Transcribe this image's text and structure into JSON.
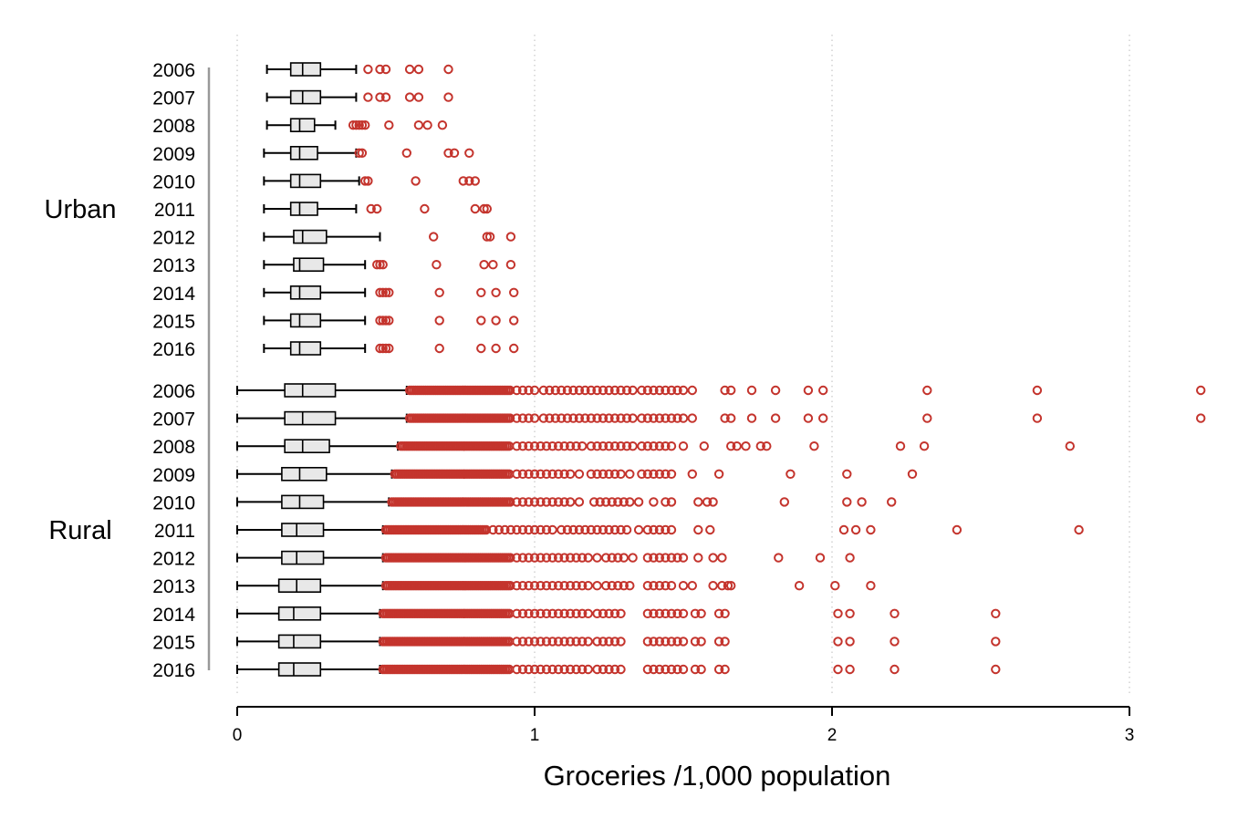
{
  "chart_data": {
    "type": "boxplot",
    "title": "",
    "xlabel": "Groceries /1,000 population",
    "xlim": [
      0,
      3
    ],
    "xticks": [
      "0",
      "1",
      "2",
      "3"
    ],
    "grid": "vertical dotted",
    "colors": {
      "box_fill": "#e8e8e8",
      "outlier": "#c4342d",
      "line": "#000000",
      "grid": "#bbbbbb"
    },
    "groups": [
      {
        "name": "Urban",
        "rows": [
          {
            "year": "2006",
            "whisker_low": 0.1,
            "q1": 0.18,
            "median": 0.22,
            "q3": 0.28,
            "whisker_high": 0.4,
            "outliers": [
              0.44,
              0.48,
              0.5,
              0.58,
              0.61,
              0.71
            ]
          },
          {
            "year": "2007",
            "whisker_low": 0.1,
            "q1": 0.18,
            "median": 0.22,
            "q3": 0.28,
            "whisker_high": 0.4,
            "outliers": [
              0.44,
              0.48,
              0.5,
              0.58,
              0.61,
              0.71
            ]
          },
          {
            "year": "2008",
            "whisker_low": 0.1,
            "q1": 0.18,
            "median": 0.21,
            "q3": 0.26,
            "whisker_high": 0.33,
            "outliers": [
              0.39,
              0.4,
              0.41,
              0.42,
              0.43,
              0.51,
              0.61,
              0.64,
              0.69
            ]
          },
          {
            "year": "2009",
            "whisker_low": 0.09,
            "q1": 0.18,
            "median": 0.21,
            "q3": 0.27,
            "whisker_high": 0.4,
            "outliers": [
              0.41,
              0.42,
              0.57,
              0.71,
              0.73,
              0.78
            ]
          },
          {
            "year": "2010",
            "whisker_low": 0.09,
            "q1": 0.18,
            "median": 0.21,
            "q3": 0.28,
            "whisker_high": 0.41,
            "outliers": [
              0.43,
              0.44,
              0.6,
              0.76,
              0.78,
              0.8
            ]
          },
          {
            "year": "2011",
            "whisker_low": 0.09,
            "q1": 0.18,
            "median": 0.21,
            "q3": 0.27,
            "whisker_high": 0.4,
            "outliers": [
              0.45,
              0.47,
              0.63,
              0.8,
              0.83,
              0.84
            ]
          },
          {
            "year": "2012",
            "whisker_low": 0.09,
            "q1": 0.19,
            "median": 0.22,
            "q3": 0.3,
            "whisker_high": 0.48,
            "outliers": [
              0.66,
              0.84,
              0.85,
              0.92
            ]
          },
          {
            "year": "2013",
            "whisker_low": 0.09,
            "q1": 0.19,
            "median": 0.21,
            "q3": 0.29,
            "whisker_high": 0.43,
            "outliers": [
              0.47,
              0.48,
              0.49,
              0.67,
              0.83,
              0.86,
              0.92
            ]
          },
          {
            "year": "2014",
            "whisker_low": 0.09,
            "q1": 0.18,
            "median": 0.21,
            "q3": 0.28,
            "whisker_high": 0.43,
            "outliers": [
              0.48,
              0.49,
              0.5,
              0.51,
              0.68,
              0.82,
              0.87,
              0.93
            ]
          },
          {
            "year": "2015",
            "whisker_low": 0.09,
            "q1": 0.18,
            "median": 0.21,
            "q3": 0.28,
            "whisker_high": 0.43,
            "outliers": [
              0.48,
              0.49,
              0.5,
              0.51,
              0.68,
              0.82,
              0.87,
              0.93
            ]
          },
          {
            "year": "2016",
            "whisker_low": 0.09,
            "q1": 0.18,
            "median": 0.21,
            "q3": 0.28,
            "whisker_high": 0.43,
            "outliers": [
              0.48,
              0.49,
              0.5,
              0.51,
              0.68,
              0.82,
              0.87,
              0.93
            ]
          }
        ]
      },
      {
        "name": "Rural",
        "rows": [
          {
            "year": "2006",
            "whisker_low": 0,
            "q1": 0.16,
            "median": 0.22,
            "q3": 0.33,
            "whisker_high": 0.57,
            "dense_outlier_range": [
              0.58,
              0.92
            ],
            "outliers": [
              0.94,
              0.96,
              0.98,
              1.0,
              1.03,
              1.05,
              1.07,
              1.09,
              1.11,
              1.13,
              1.15,
              1.17,
              1.19,
              1.21,
              1.23,
              1.25,
              1.27,
              1.29,
              1.31,
              1.33,
              1.36,
              1.38,
              1.4,
              1.42,
              1.44,
              1.46,
              1.48,
              1.5,
              1.53,
              1.64,
              1.66,
              1.73,
              1.81,
              1.92,
              1.97,
              2.32,
              2.69,
              3.24
            ]
          },
          {
            "year": "2007",
            "whisker_low": 0,
            "q1": 0.16,
            "median": 0.22,
            "q3": 0.33,
            "whisker_high": 0.57,
            "dense_outlier_range": [
              0.58,
              0.92
            ],
            "outliers": [
              0.94,
              0.96,
              0.98,
              1.0,
              1.03,
              1.05,
              1.07,
              1.09,
              1.11,
              1.13,
              1.15,
              1.17,
              1.19,
              1.21,
              1.23,
              1.25,
              1.27,
              1.29,
              1.31,
              1.33,
              1.36,
              1.38,
              1.4,
              1.42,
              1.44,
              1.46,
              1.48,
              1.5,
              1.53,
              1.64,
              1.66,
              1.73,
              1.81,
              1.92,
              1.97,
              2.32,
              2.69,
              3.24
            ]
          },
          {
            "year": "2008",
            "whisker_low": 0,
            "q1": 0.16,
            "median": 0.22,
            "q3": 0.31,
            "whisker_high": 0.54,
            "dense_outlier_range": [
              0.55,
              0.92
            ],
            "outliers": [
              0.94,
              0.96,
              0.98,
              1.0,
              1.02,
              1.04,
              1.06,
              1.08,
              1.1,
              1.12,
              1.14,
              1.16,
              1.19,
              1.21,
              1.23,
              1.25,
              1.27,
              1.29,
              1.31,
              1.33,
              1.36,
              1.38,
              1.4,
              1.42,
              1.44,
              1.46,
              1.5,
              1.57,
              1.66,
              1.68,
              1.71,
              1.76,
              1.78,
              1.94,
              2.23,
              2.31,
              2.8
            ]
          },
          {
            "year": "2009",
            "whisker_low": 0,
            "q1": 0.15,
            "median": 0.21,
            "q3": 0.3,
            "whisker_high": 0.52,
            "dense_outlier_range": [
              0.53,
              0.92
            ],
            "outliers": [
              0.94,
              0.96,
              0.98,
              1.0,
              1.02,
              1.04,
              1.06,
              1.08,
              1.1,
              1.12,
              1.15,
              1.19,
              1.21,
              1.23,
              1.25,
              1.27,
              1.29,
              1.32,
              1.36,
              1.38,
              1.4,
              1.42,
              1.44,
              1.46,
              1.53,
              1.62,
              1.86,
              2.05,
              2.27
            ]
          },
          {
            "year": "2010",
            "whisker_low": 0,
            "q1": 0.15,
            "median": 0.21,
            "q3": 0.29,
            "whisker_high": 0.51,
            "dense_outlier_range": [
              0.52,
              0.92
            ],
            "outliers": [
              0.94,
              0.96,
              0.98,
              1.0,
              1.02,
              1.04,
              1.06,
              1.08,
              1.1,
              1.12,
              1.15,
              1.2,
              1.22,
              1.24,
              1.26,
              1.28,
              1.3,
              1.32,
              1.35,
              1.4,
              1.44,
              1.46,
              1.55,
              1.58,
              1.6,
              1.84,
              2.05,
              2.1,
              2.2
            ]
          },
          {
            "year": "2011",
            "whisker_low": 0,
            "q1": 0.15,
            "median": 0.2,
            "q3": 0.29,
            "whisker_high": 0.49,
            "dense_outlier_range": [
              0.5,
              0.84
            ],
            "outliers": [
              0.86,
              0.88,
              0.9,
              0.92,
              0.94,
              0.96,
              0.98,
              1.0,
              1.02,
              1.04,
              1.06,
              1.09,
              1.11,
              1.13,
              1.15,
              1.17,
              1.19,
              1.21,
              1.23,
              1.25,
              1.27,
              1.29,
              1.31,
              1.35,
              1.38,
              1.4,
              1.42,
              1.44,
              1.46,
              1.55,
              1.59,
              2.04,
              2.08,
              2.13,
              2.42,
              2.83
            ]
          },
          {
            "year": "2012",
            "whisker_low": 0,
            "q1": 0.15,
            "median": 0.2,
            "q3": 0.29,
            "whisker_high": 0.49,
            "dense_outlier_range": [
              0.5,
              0.92
            ],
            "outliers": [
              0.94,
              0.96,
              0.98,
              1.0,
              1.02,
              1.04,
              1.06,
              1.08,
              1.1,
              1.12,
              1.14,
              1.16,
              1.18,
              1.21,
              1.24,
              1.26,
              1.28,
              1.3,
              1.33,
              1.38,
              1.4,
              1.42,
              1.44,
              1.46,
              1.48,
              1.5,
              1.55,
              1.6,
              1.63,
              1.82,
              1.96,
              2.06
            ]
          },
          {
            "year": "2013",
            "whisker_low": 0,
            "q1": 0.14,
            "median": 0.2,
            "q3": 0.28,
            "whisker_high": 0.49,
            "dense_outlier_range": [
              0.5,
              0.92
            ],
            "outliers": [
              0.94,
              0.96,
              0.98,
              1.0,
              1.02,
              1.04,
              1.06,
              1.08,
              1.1,
              1.12,
              1.14,
              1.16,
              1.18,
              1.21,
              1.24,
              1.26,
              1.28,
              1.3,
              1.32,
              1.38,
              1.4,
              1.42,
              1.44,
              1.46,
              1.5,
              1.53,
              1.6,
              1.63,
              1.65,
              1.66,
              1.89,
              2.01,
              2.13
            ]
          },
          {
            "year": "2014",
            "whisker_low": 0,
            "q1": 0.14,
            "median": 0.19,
            "q3": 0.28,
            "whisker_high": 0.48,
            "dense_outlier_range": [
              0.49,
              0.92
            ],
            "outliers": [
              0.94,
              0.96,
              0.98,
              1.0,
              1.02,
              1.04,
              1.06,
              1.08,
              1.1,
              1.12,
              1.14,
              1.16,
              1.18,
              1.21,
              1.23,
              1.25,
              1.27,
              1.29,
              1.38,
              1.4,
              1.42,
              1.44,
              1.46,
              1.48,
              1.5,
              1.54,
              1.56,
              1.62,
              1.64,
              2.02,
              2.06,
              2.21,
              2.55
            ]
          },
          {
            "year": "2015",
            "whisker_low": 0,
            "q1": 0.14,
            "median": 0.19,
            "q3": 0.28,
            "whisker_high": 0.48,
            "dense_outlier_range": [
              0.49,
              0.92
            ],
            "outliers": [
              0.94,
              0.96,
              0.98,
              1.0,
              1.02,
              1.04,
              1.06,
              1.08,
              1.1,
              1.12,
              1.14,
              1.16,
              1.18,
              1.21,
              1.23,
              1.25,
              1.27,
              1.29,
              1.38,
              1.4,
              1.42,
              1.44,
              1.46,
              1.48,
              1.5,
              1.54,
              1.56,
              1.62,
              1.64,
              2.02,
              2.06,
              2.21,
              2.55
            ]
          },
          {
            "year": "2016",
            "whisker_low": 0,
            "q1": 0.14,
            "median": 0.19,
            "q3": 0.28,
            "whisker_high": 0.48,
            "dense_outlier_range": [
              0.49,
              0.92
            ],
            "outliers": [
              0.94,
              0.96,
              0.98,
              1.0,
              1.02,
              1.04,
              1.06,
              1.08,
              1.1,
              1.12,
              1.14,
              1.16,
              1.18,
              1.21,
              1.23,
              1.25,
              1.27,
              1.29,
              1.38,
              1.4,
              1.42,
              1.44,
              1.46,
              1.48,
              1.5,
              1.54,
              1.56,
              1.62,
              1.64,
              2.02,
              2.06,
              2.21,
              2.55
            ]
          }
        ]
      }
    ]
  }
}
